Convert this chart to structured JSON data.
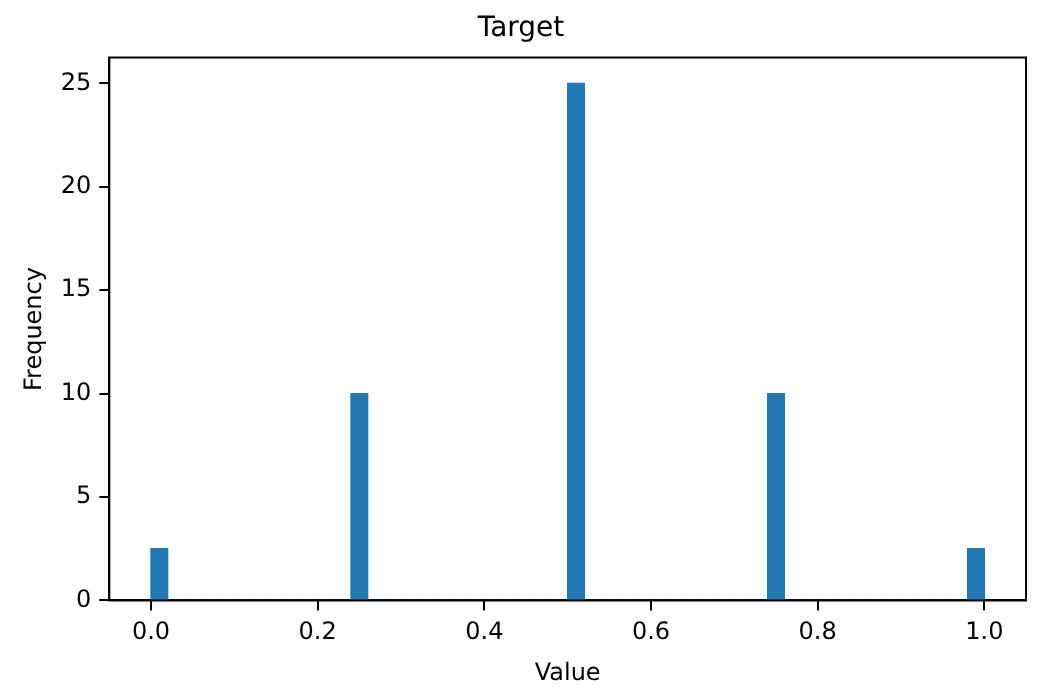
{
  "chart_data": {
    "type": "histogram",
    "title": "Target",
    "xlabel": "Value",
    "ylabel": "Frequency",
    "bins": [
      0,
      0.02,
      0.04,
      0.06,
      0.08,
      0.1,
      0.12,
      0.14,
      0.16,
      0.18,
      0.2,
      0.22,
      0.24,
      0.26,
      0.28,
      0.3,
      0.32,
      0.34,
      0.36,
      0.38,
      0.4,
      0.42,
      0.44,
      0.46,
      0.48,
      0.5,
      0.52,
      0.54,
      0.56,
      0.58,
      0.6,
      0.62,
      0.64,
      0.66,
      0.68,
      0.7,
      0.72,
      0.74,
      0.76,
      0.78,
      0.8,
      0.82,
      0.84,
      0.86,
      0.88,
      0.9,
      0.92,
      0.94,
      0.96,
      0.98,
      1
    ],
    "values": [
      2.5,
      0,
      0,
      0,
      0,
      0,
      0,
      0,
      0,
      0,
      0,
      0,
      10,
      0,
      0,
      0,
      0,
      0,
      0,
      0,
      0,
      0,
      0,
      0,
      0,
      25,
      0,
      0,
      0,
      0,
      0,
      0,
      0,
      0,
      0,
      0,
      0,
      10,
      0,
      0,
      0,
      0,
      0,
      0,
      0,
      0,
      0,
      0,
      0,
      2.5
    ],
    "color": "#1f77b4",
    "xlim": [
      -0.05,
      1.05
    ],
    "xticks": [
      {
        "value": 0,
        "label": "0.0"
      },
      0.2,
      0.4,
      0.6,
      0.8,
      {
        "value": 1,
        "label": "1.0"
      }
    ],
    "ylim": [
      0,
      26.25
    ],
    "yticks": [
      0,
      5,
      10,
      15,
      20,
      25
    ],
    "grid": false,
    "legend": false
  }
}
